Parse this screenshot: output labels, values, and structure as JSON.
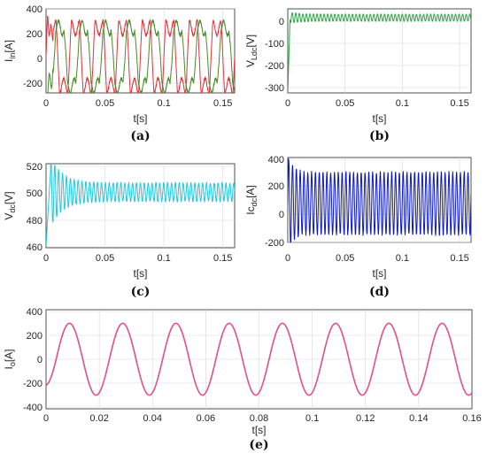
{
  "chart_data": [
    {
      "panel": "a",
      "caption": "(a)",
      "type": "line",
      "xlabel": "t[s]",
      "ylabel_main": "I",
      "ylabel_sub": "in",
      "ylabel_unit": "[A]",
      "xlim": [
        0,
        0.16
      ],
      "ylim": [
        -300,
        400
      ],
      "xticks": [
        "0",
        "0.05",
        "0.1",
        "0.15"
      ],
      "yticks": [
        "400",
        "200",
        "0",
        "-200"
      ],
      "grid": true,
      "series": [
        {
          "color": "#e8303a",
          "amplitude": 300,
          "period": 0.02,
          "note": "three-phase current, red"
        },
        {
          "color": "#4a8a2a",
          "amplitude": 300,
          "period": 0.02,
          "note": "three-phase current, green"
        }
      ]
    },
    {
      "panel": "b",
      "caption": "(b)",
      "type": "line",
      "xlabel": "t[s]",
      "ylabel_main": "V",
      "ylabel_sub": "Ldc",
      "ylabel_unit": "[V]",
      "xlim": [
        0,
        0.16
      ],
      "ylim": [
        -340,
        40
      ],
      "xticks": [
        "0",
        "0.05",
        "0.1",
        "0.15"
      ],
      "yticks": [
        "0",
        "-100",
        "-200",
        "-300"
      ],
      "grid": true,
      "series": [
        {
          "color": "#1fae3a",
          "center": 0,
          "ripple": 15,
          "start": -340
        }
      ]
    },
    {
      "panel": "c",
      "caption": "(c)",
      "type": "line",
      "xlabel": "t[s]",
      "ylabel_main": "V",
      "ylabel_sub": "dc",
      "ylabel_unit": "[V]",
      "xlim": [
        0,
        0.16
      ],
      "ylim": [
        460,
        525
      ],
      "xticks": [
        "0",
        "0.05",
        "0.1",
        "0.15"
      ],
      "yticks": [
        "520",
        "500",
        "480",
        "460"
      ],
      "grid": true,
      "series": [
        {
          "color": "#1ec8e0",
          "center": 503,
          "ripple": 7,
          "start": 462
        }
      ]
    },
    {
      "panel": "d",
      "caption": "(d)",
      "type": "line",
      "xlabel": "t[s]",
      "ylabel_main": "Ic",
      "ylabel_sub": "dc",
      "ylabel_unit": "[A]",
      "xlim": [
        0,
        0.16
      ],
      "ylim": [
        -220,
        400
      ],
      "xticks": [
        "0",
        "0.05",
        "0.1",
        "0.15"
      ],
      "yticks": [
        "400",
        "200",
        "0",
        "-200"
      ],
      "grid": true,
      "series": [
        {
          "color": "#0a16c8",
          "high": 290,
          "low": -160,
          "peak": 400,
          "dip": -210
        }
      ]
    },
    {
      "panel": "e",
      "caption": "(e)",
      "type": "line",
      "xlabel": "t[s]",
      "ylabel_main": "I",
      "ylabel_sub": "o",
      "ylabel_unit": "[A]",
      "xlim": [
        0,
        0.16
      ],
      "ylim": [
        -400,
        400
      ],
      "xticks": [
        "0",
        "0.02",
        "0.04",
        "0.06",
        "0.08",
        "0.1",
        "0.12",
        "0.14",
        "0.16"
      ],
      "yticks": [
        "400",
        "200",
        "0",
        "-200",
        "-400"
      ],
      "grid": true,
      "series": [
        {
          "color": "#8e3fb5",
          "amplitude": 290,
          "period": 0.02
        },
        {
          "color": "#e9558a",
          "amplitude": 290,
          "period": 0.02
        }
      ]
    }
  ]
}
